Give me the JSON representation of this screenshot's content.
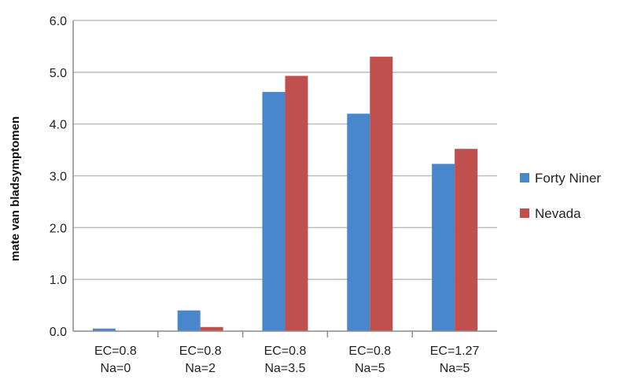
{
  "chart_data": {
    "type": "bar",
    "categories": [
      [
        "EC=0.8",
        "Na=0"
      ],
      [
        "EC=0.8",
        "Na=2"
      ],
      [
        "EC=0.8",
        "Na=3.5"
      ],
      [
        "EC=0.8",
        "Na=5"
      ],
      [
        "EC=1.27",
        "Na=5"
      ]
    ],
    "series": [
      {
        "name": "Forty Niner",
        "color": "#4a86cc",
        "values": [
          0.05,
          0.4,
          4.62,
          4.2,
          3.23
        ]
      },
      {
        "name": "Nevada",
        "color": "#c0504d",
        "values": [
          0.0,
          0.08,
          4.93,
          5.3,
          3.52
        ]
      }
    ],
    "ylabel": "mate van bladsymptomen",
    "ylim": [
      0,
      6
    ],
    "yticks": [
      "0.0",
      "1.0",
      "2.0",
      "3.0",
      "4.0",
      "5.0",
      "6.0"
    ],
    "grid": true,
    "legend_position": "right"
  }
}
